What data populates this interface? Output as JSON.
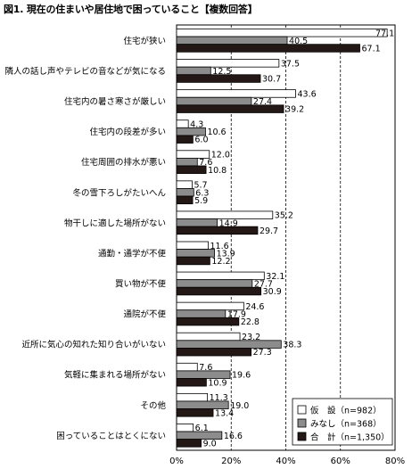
{
  "title": "図1. 現在の住まいや居住地で困っていること【複数回答】",
  "chart_data": {
    "type": "bar",
    "orientation": "horizontal",
    "categories": [
      "住宅が狭い",
      "隣人の話し声やテレビの音などが気になる",
      "住宅内の暑さ寒さが厳しい",
      "住宅内の段差が多い",
      "住宅周囲の排水が悪い",
      "冬の雪下ろしがたいへん",
      "物干しに適した場所がない",
      "通勤・通学が不便",
      "買い物が不便",
      "通院が不便",
      "近所に気心の知れた知り合いがいない",
      "気軽に集まれる場所がない",
      "その他",
      "困っていることはとくにない"
    ],
    "series": [
      {
        "name": "仮　設（n=982）",
        "color": "#ffffff",
        "values": [
          77.1,
          37.5,
          43.6,
          4.3,
          12.0,
          5.7,
          35.2,
          11.6,
          32.1,
          24.6,
          23.2,
          7.6,
          11.3,
          6.1
        ],
        "labels": [
          "77.1",
          "37.5",
          "43.6",
          "4.3",
          "12.0",
          "5.7",
          "35.2",
          "11.6",
          "32.1",
          "24.6",
          "23.2",
          "7.6",
          "11.3",
          "6.1"
        ]
      },
      {
        "name": "みなし（n=368）",
        "color": "#8c8c8c",
        "values": [
          40.5,
          12.5,
          27.4,
          10.6,
          7.6,
          6.3,
          14.9,
          13.9,
          27.7,
          17.9,
          38.3,
          19.6,
          19.0,
          16.6
        ],
        "labels": [
          "40.5",
          "12.5",
          "27.4",
          "10.6",
          "7.6",
          "6.3",
          "14.9",
          "13.9",
          "27.7",
          "17.9",
          "38.3",
          "19.6",
          "19.0",
          "16.6"
        ]
      },
      {
        "name": "合　計（n=1,350）",
        "color": "#231815",
        "values": [
          67.1,
          30.7,
          39.2,
          6.0,
          10.8,
          5.9,
          29.7,
          12.2,
          30.9,
          22.8,
          27.3,
          10.9,
          13.4,
          9.0
        ],
        "labels": [
          "67.1",
          "30.7",
          "39.2",
          "6.0",
          "10.8",
          "5.9",
          "29.7",
          "12.2",
          "30.9",
          "22.8",
          "27.3",
          "10.9",
          "13.4",
          "9.0"
        ]
      }
    ],
    "xlim": [
      0,
      80
    ],
    "xticks": [
      "0%",
      "20%",
      "40%",
      "60%",
      "80%"
    ],
    "gridlines": "dashed",
    "legend_position": "bottom-right"
  }
}
